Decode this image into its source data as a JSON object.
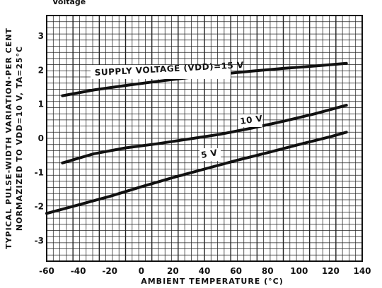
{
  "top_fragment": "Voltage",
  "chart_data": {
    "type": "line",
    "title": "",
    "xlabel": "AMBIENT TEMPERATURE (°C)",
    "ylabel_line1": "TYPICAL PULSE-WIDTH VARIATION-PER CENT",
    "ylabel_line2": "NORMAZIZED TO VDD=10 V, TA=25°C",
    "xlim": [
      -60,
      140
    ],
    "ylim": [
      -3.6,
      3.6
    ],
    "x_ticks": [
      "-60",
      "-40",
      "-20",
      "0",
      "20",
      "40",
      "60",
      "80",
      "100",
      "120",
      "140"
    ],
    "y_ticks": [
      "3",
      "2",
      "1",
      "0",
      "-1",
      "-2",
      "-3"
    ],
    "y_tick_values": [
      3,
      2,
      1,
      0,
      -1,
      -2,
      -3
    ],
    "grid": true,
    "series": [
      {
        "name": "SUPPLY VOLTAGE (VDD)=15 V",
        "x": [
          -50,
          -30,
          -10,
          10,
          30,
          50,
          70,
          90,
          110,
          130
        ],
        "y": [
          1.25,
          1.42,
          1.55,
          1.67,
          1.78,
          1.88,
          1.97,
          2.05,
          2.12,
          2.2
        ]
      },
      {
        "name": "10 V",
        "x": [
          -50,
          -30,
          -10,
          10,
          30,
          50,
          70,
          90,
          110,
          130
        ],
        "y": [
          -0.72,
          -0.45,
          -0.28,
          -0.16,
          -0.02,
          0.12,
          0.3,
          0.5,
          0.72,
          0.97
        ]
      },
      {
        "name": "5 V",
        "x": [
          -60,
          -40,
          -20,
          0,
          20,
          40,
          60,
          80,
          100,
          120,
          130
        ],
        "y": [
          -2.2,
          -1.95,
          -1.7,
          -1.42,
          -1.15,
          -0.9,
          -0.65,
          -0.42,
          -0.18,
          0.05,
          0.18
        ]
      }
    ]
  }
}
